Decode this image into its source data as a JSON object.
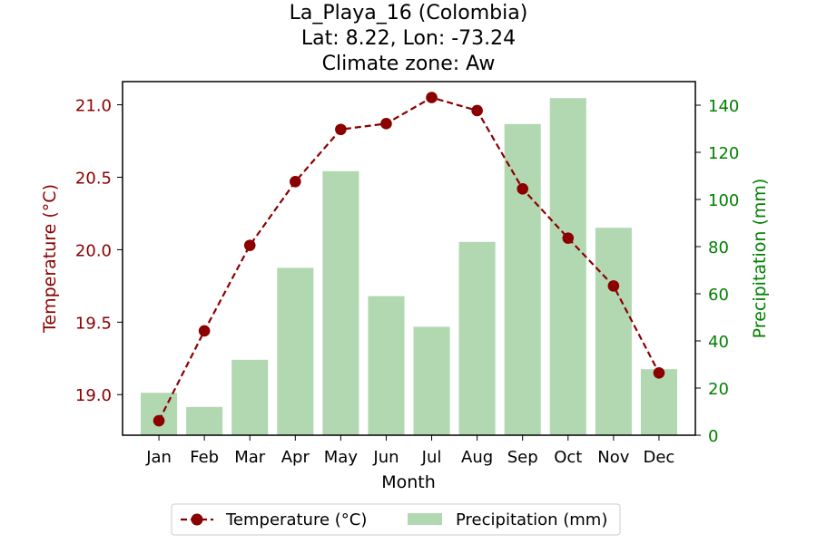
{
  "chart_data": {
    "type": "bar+line",
    "title_lines": [
      "La_Playa_16 (Colombia)",
      "Lat: 8.22, Lon: -73.24",
      "Climate zone: Aw"
    ],
    "xlabel": "Month",
    "categories": [
      "Jan",
      "Feb",
      "Mar",
      "Apr",
      "May",
      "Jun",
      "Jul",
      "Aug",
      "Sep",
      "Oct",
      "Nov",
      "Dec"
    ],
    "temperature": {
      "name": "Temperature (°C)",
      "axis_label": "Temperature (°C)",
      "values": [
        18.82,
        19.44,
        20.03,
        20.47,
        20.83,
        20.87,
        21.05,
        20.96,
        20.42,
        20.08,
        19.75,
        19.15
      ],
      "ylim": [
        18.72,
        21.16
      ],
      "ticks": [
        19.0,
        19.5,
        20.0,
        20.5,
        21.0
      ],
      "tick_labels": [
        "19.0",
        "19.5",
        "20.0",
        "20.5",
        "21.0"
      ],
      "color": "#8b0000"
    },
    "precipitation": {
      "name": "Precipitation (mm)",
      "axis_label": "Precipitation (mm)",
      "values": [
        18,
        12,
        32,
        71,
        112,
        59,
        46,
        82,
        132,
        143,
        88,
        28
      ],
      "ylim": [
        0,
        150
      ],
      "ticks": [
        0,
        20,
        40,
        60,
        80,
        100,
        120,
        140
      ],
      "tick_labels": [
        "0",
        "20",
        "40",
        "60",
        "80",
        "100",
        "120",
        "140"
      ],
      "color": "#b2d8b2",
      "axis_color": "#008000"
    },
    "legend_position": "bottom-center"
  }
}
